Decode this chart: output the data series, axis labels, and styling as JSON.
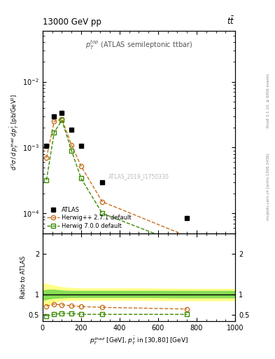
{
  "title_left": "13000 GeV pp",
  "title_right": "tt",
  "annotation": "$p_T^{top}$ (ATLAS semileptonic ttbar)",
  "watermark": "ATLAS_2019_I1750330",
  "right_label_top": "Rivet 3.1.10, ≥ 600k events",
  "right_label_bot": "mcplots.cern.ch [arXiv:1306.3436]",
  "atlas_x": [
    20,
    60,
    100,
    150,
    200,
    310,
    750
  ],
  "atlas_y": [
    0.00105,
    0.003,
    0.0034,
    0.00185,
    0.00105,
    0.0003,
    8.5e-05
  ],
  "hw271_x": [
    20,
    60,
    100,
    150,
    200,
    310,
    750
  ],
  "hw271_y": [
    0.0007,
    0.0025,
    0.0027,
    0.0011,
    0.00052,
    0.00015,
    4.5e-05
  ],
  "hw271_color": "#c87020",
  "hw700_x": [
    20,
    60,
    100,
    150,
    200,
    310,
    750
  ],
  "hw700_y": [
    0.00032,
    0.0017,
    0.0026,
    0.0009,
    0.00034,
    0.0001,
    3.2e-05
  ],
  "hw700_color": "#3a8c00",
  "ratio_hw271_x": [
    20,
    60,
    100,
    150,
    200,
    310,
    750
  ],
  "ratio_hw271_y": [
    0.72,
    0.77,
    0.75,
    0.73,
    0.71,
    0.69,
    0.65
  ],
  "ratio_hw700_x": [
    20,
    60,
    100,
    150,
    200,
    310,
    750
  ],
  "ratio_hw700_y": [
    0.48,
    0.52,
    0.54,
    0.54,
    0.52,
    0.52,
    0.52
  ],
  "band_x": [
    0,
    30,
    60,
    100,
    150,
    200,
    300,
    500,
    750,
    1000
  ],
  "band_inner_lo": [
    0.87,
    0.9,
    0.92,
    0.93,
    0.94,
    0.94,
    0.94,
    0.94,
    0.93,
    0.93
  ],
  "band_inner_hi": [
    1.1,
    1.12,
    1.12,
    1.1,
    1.09,
    1.09,
    1.09,
    1.09,
    1.09,
    1.09
  ],
  "band_outer_lo": [
    0.72,
    0.77,
    0.82,
    0.86,
    0.87,
    0.87,
    0.87,
    0.87,
    0.86,
    0.86
  ],
  "band_outer_hi": [
    1.28,
    1.25,
    1.22,
    1.18,
    1.16,
    1.15,
    1.15,
    1.15,
    1.14,
    1.14
  ],
  "xlim": [
    0,
    1000
  ],
  "ylim_main": [
    5e-05,
    0.06
  ],
  "ylim_ratio": [
    0.35,
    2.5
  ],
  "ratio_yticks": [
    0.5,
    1.0,
    2.0
  ],
  "ratio_yticklabels": [
    "0.5",
    "1",
    "2"
  ]
}
